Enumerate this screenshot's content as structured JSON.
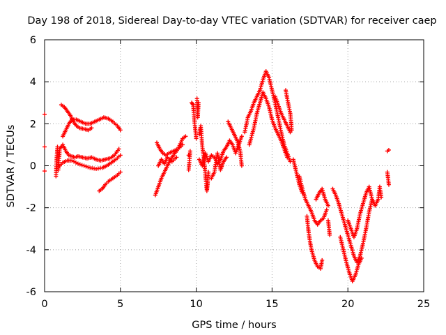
{
  "chart_data": {
    "type": "scatter",
    "title": "Day 198 of 2018, Sidereal Day-to-day VTEC variation (SDTVAR) for receiver caep",
    "xlabel": "GPS time / hours",
    "ylabel": "SDTVAR / TECUs",
    "xlim": [
      0,
      25
    ],
    "ylim": [
      -6,
      6
    ],
    "xticks": [
      0,
      5,
      10,
      15,
      20,
      25
    ],
    "yticks": [
      -6,
      -4,
      -2,
      0,
      2,
      4,
      6
    ],
    "grid": true,
    "marker": "+",
    "color": "#ff0000",
    "series": [
      {
        "points": [
          [
            0.0,
            2.45
          ],
          [
            0.0,
            0.9
          ],
          [
            0.0,
            -0.25
          ],
          [
            0.75,
            -0.5
          ],
          [
            0.8,
            0.4
          ],
          [
            0.85,
            0.9
          ],
          [
            0.9,
            -0.2
          ],
          [
            1.0,
            0.8
          ],
          [
            1.2,
            1.0
          ],
          [
            1.4,
            0.7
          ],
          [
            1.6,
            0.5
          ],
          [
            1.8,
            0.45
          ],
          [
            2.0,
            0.4
          ],
          [
            2.2,
            0.45
          ],
          [
            2.5,
            0.4
          ],
          [
            2.8,
            0.35
          ],
          [
            3.1,
            0.4
          ],
          [
            3.4,
            0.3
          ],
          [
            3.7,
            0.25
          ],
          [
            4.0,
            0.3
          ],
          [
            4.3,
            0.35
          ],
          [
            4.6,
            0.5
          ],
          [
            4.9,
            0.8
          ],
          [
            1.0,
            0.0
          ],
          [
            1.2,
            0.15
          ],
          [
            1.5,
            0.25
          ],
          [
            1.8,
            0.25
          ],
          [
            2.2,
            0.1
          ],
          [
            2.6,
            0.0
          ],
          [
            3.0,
            -0.1
          ],
          [
            3.4,
            -0.15
          ],
          [
            3.8,
            -0.1
          ],
          [
            4.1,
            0.0
          ],
          [
            4.4,
            0.15
          ],
          [
            4.7,
            0.3
          ],
          [
            5.0,
            0.5
          ],
          [
            1.1,
            2.9
          ],
          [
            1.3,
            2.8
          ],
          [
            1.5,
            2.6
          ],
          [
            1.7,
            2.4
          ],
          [
            1.9,
            2.1
          ],
          [
            2.1,
            1.9
          ],
          [
            2.3,
            1.8
          ],
          [
            2.6,
            1.75
          ],
          [
            2.9,
            1.7
          ],
          [
            3.1,
            1.8
          ],
          [
            1.2,
            1.4
          ],
          [
            1.4,
            1.7
          ],
          [
            1.6,
            2.0
          ],
          [
            1.8,
            2.2
          ],
          [
            2.1,
            2.2
          ],
          [
            2.4,
            2.1
          ],
          [
            2.7,
            2.0
          ],
          [
            3.0,
            2.0
          ],
          [
            3.3,
            2.1
          ],
          [
            3.6,
            2.2
          ],
          [
            3.9,
            2.3
          ],
          [
            4.2,
            2.25
          ],
          [
            4.5,
            2.1
          ],
          [
            4.8,
            1.9
          ],
          [
            5.0,
            1.7
          ],
          [
            3.6,
            -1.2
          ],
          [
            3.8,
            -1.1
          ],
          [
            4.0,
            -0.9
          ],
          [
            4.2,
            -0.75
          ],
          [
            4.5,
            -0.6
          ],
          [
            4.8,
            -0.45
          ],
          [
            5.0,
            -0.3
          ],
          [
            7.3,
            -1.4
          ],
          [
            7.5,
            -1.0
          ],
          [
            7.7,
            -0.6
          ],
          [
            7.9,
            -0.3
          ],
          [
            8.1,
            0.0
          ],
          [
            8.3,
            0.3
          ],
          [
            8.5,
            0.5
          ],
          [
            8.8,
            0.8
          ],
          [
            9.1,
            1.0
          ],
          [
            7.4,
            1.1
          ],
          [
            7.6,
            0.8
          ],
          [
            7.8,
            0.6
          ],
          [
            8.0,
            0.5
          ],
          [
            8.2,
            0.6
          ],
          [
            8.5,
            0.7
          ],
          [
            8.8,
            0.8
          ],
          [
            9.1,
            1.3
          ],
          [
            9.3,
            1.4
          ],
          [
            7.5,
            0.0
          ],
          [
            7.7,
            0.3
          ],
          [
            7.9,
            0.1
          ],
          [
            8.1,
            0.4
          ],
          [
            8.4,
            0.2
          ],
          [
            8.7,
            0.4
          ],
          [
            9.5,
            0.5
          ],
          [
            9.5,
            -0.2
          ],
          [
            9.6,
            0.7
          ],
          [
            9.7,
            3.0
          ],
          [
            9.8,
            2.9
          ],
          [
            9.9,
            2.0
          ],
          [
            10.0,
            1.3
          ],
          [
            10.05,
            3.2
          ],
          [
            10.1,
            2.3
          ],
          [
            10.15,
            3.0
          ],
          [
            10.2,
            1.5
          ],
          [
            10.3,
            1.9
          ],
          [
            10.4,
            0.9
          ],
          [
            10.5,
            0.4
          ],
          [
            10.6,
            -0.4
          ],
          [
            10.7,
            -1.2
          ],
          [
            10.75,
            -0.9
          ],
          [
            10.8,
            -0.3
          ],
          [
            10.2,
            0.3
          ],
          [
            10.4,
            0.0
          ],
          [
            10.6,
            0.6
          ],
          [
            10.8,
            0.2
          ],
          [
            11.0,
            0.5
          ],
          [
            11.2,
            0.4
          ],
          [
            11.4,
            0.1
          ],
          [
            11.6,
            0.3
          ],
          [
            11.8,
            0.7
          ],
          [
            12.0,
            0.9
          ],
          [
            12.2,
            1.2
          ],
          [
            12.4,
            1.0
          ],
          [
            12.6,
            0.6
          ],
          [
            12.8,
            1.0
          ],
          [
            13.0,
            1.4
          ],
          [
            11.0,
            -0.6
          ],
          [
            11.2,
            -0.3
          ],
          [
            11.4,
            0.6
          ],
          [
            11.6,
            -0.2
          ],
          [
            11.8,
            0.2
          ],
          [
            12.0,
            0.4
          ],
          [
            12.1,
            2.1
          ],
          [
            12.3,
            1.8
          ],
          [
            12.5,
            1.5
          ],
          [
            12.7,
            1.2
          ],
          [
            12.9,
            0.7
          ],
          [
            13.0,
            0.0
          ],
          [
            13.2,
            1.6
          ],
          [
            13.4,
            2.3
          ],
          [
            13.6,
            2.6
          ],
          [
            13.8,
            3.0
          ],
          [
            14.0,
            3.3
          ],
          [
            14.2,
            3.6
          ],
          [
            14.4,
            4.1
          ],
          [
            14.6,
            4.5
          ],
          [
            14.8,
            4.2
          ],
          [
            15.0,
            3.6
          ],
          [
            15.2,
            3.0
          ],
          [
            15.4,
            2.3
          ],
          [
            15.6,
            1.6
          ],
          [
            15.8,
            1.0
          ],
          [
            16.0,
            0.6
          ],
          [
            16.2,
            0.2
          ],
          [
            13.5,
            1.0
          ],
          [
            13.8,
            1.8
          ],
          [
            14.0,
            2.5
          ],
          [
            14.2,
            3.0
          ],
          [
            14.4,
            3.5
          ],
          [
            14.6,
            3.2
          ],
          [
            14.8,
            2.8
          ],
          [
            15.0,
            2.2
          ],
          [
            15.2,
            1.8
          ],
          [
            15.4,
            1.5
          ],
          [
            15.6,
            1.2
          ],
          [
            15.8,
            0.8
          ],
          [
            16.0,
            0.4
          ],
          [
            15.2,
            3.3
          ],
          [
            15.4,
            2.9
          ],
          [
            15.6,
            2.5
          ],
          [
            15.8,
            2.2
          ],
          [
            16.0,
            1.9
          ],
          [
            16.2,
            1.6
          ],
          [
            15.9,
            3.6
          ],
          [
            16.0,
            3.2
          ],
          [
            16.2,
            2.5
          ],
          [
            16.3,
            1.7
          ],
          [
            16.4,
            0.3
          ],
          [
            16.6,
            -0.3
          ],
          [
            16.8,
            -0.9
          ],
          [
            17.0,
            -1.3
          ],
          [
            16.8,
            -0.5
          ],
          [
            17.0,
            -1.1
          ],
          [
            17.2,
            -1.6
          ],
          [
            17.4,
            -1.9
          ],
          [
            17.6,
            -2.2
          ],
          [
            17.8,
            -2.6
          ],
          [
            18.0,
            -2.8
          ],
          [
            18.2,
            -2.6
          ],
          [
            18.4,
            -2.5
          ],
          [
            18.6,
            -2.1
          ],
          [
            17.3,
            -2.4
          ],
          [
            17.4,
            -3.1
          ],
          [
            17.5,
            -3.6
          ],
          [
            17.6,
            -4.0
          ],
          [
            17.8,
            -4.5
          ],
          [
            18.0,
            -4.8
          ],
          [
            18.2,
            -4.9
          ],
          [
            18.3,
            -4.5
          ],
          [
            17.9,
            -1.6
          ],
          [
            18.1,
            -1.3
          ],
          [
            18.3,
            -1.1
          ],
          [
            18.5,
            -1.6
          ],
          [
            18.7,
            -1.9
          ],
          [
            18.7,
            -2.6
          ],
          [
            18.8,
            -3.3
          ],
          [
            19.0,
            -1.1
          ],
          [
            19.2,
            -1.4
          ],
          [
            19.4,
            -1.8
          ],
          [
            19.6,
            -2.3
          ],
          [
            19.8,
            -2.8
          ],
          [
            20.0,
            -3.3
          ],
          [
            20.2,
            -3.8
          ],
          [
            20.4,
            -4.3
          ],
          [
            20.6,
            -4.6
          ],
          [
            20.8,
            -4.3
          ],
          [
            21.0,
            -3.7
          ],
          [
            21.2,
            -3.0
          ],
          [
            21.4,
            -2.2
          ],
          [
            21.6,
            -1.6
          ],
          [
            19.5,
            -3.4
          ],
          [
            19.7,
            -4.0
          ],
          [
            19.9,
            -4.6
          ],
          [
            20.1,
            -5.1
          ],
          [
            20.3,
            -5.5
          ],
          [
            20.5,
            -5.2
          ],
          [
            20.7,
            -4.7
          ],
          [
            20.9,
            -4.4
          ],
          [
            20.0,
            -2.6
          ],
          [
            20.2,
            -3.0
          ],
          [
            20.4,
            -3.4
          ],
          [
            20.6,
            -3.0
          ],
          [
            20.8,
            -2.3
          ],
          [
            21.0,
            -1.8
          ],
          [
            21.2,
            -1.3
          ],
          [
            21.4,
            -1.0
          ],
          [
            21.6,
            -1.6
          ],
          [
            21.8,
            -1.9
          ],
          [
            22.0,
            -1.6
          ],
          [
            22.1,
            -1.0
          ],
          [
            22.2,
            -1.5
          ],
          [
            22.6,
            0.7
          ],
          [
            22.6,
            -0.3
          ],
          [
            22.7,
            -0.9
          ],
          [
            22.7,
            0.75
          ]
        ]
      }
    ]
  }
}
